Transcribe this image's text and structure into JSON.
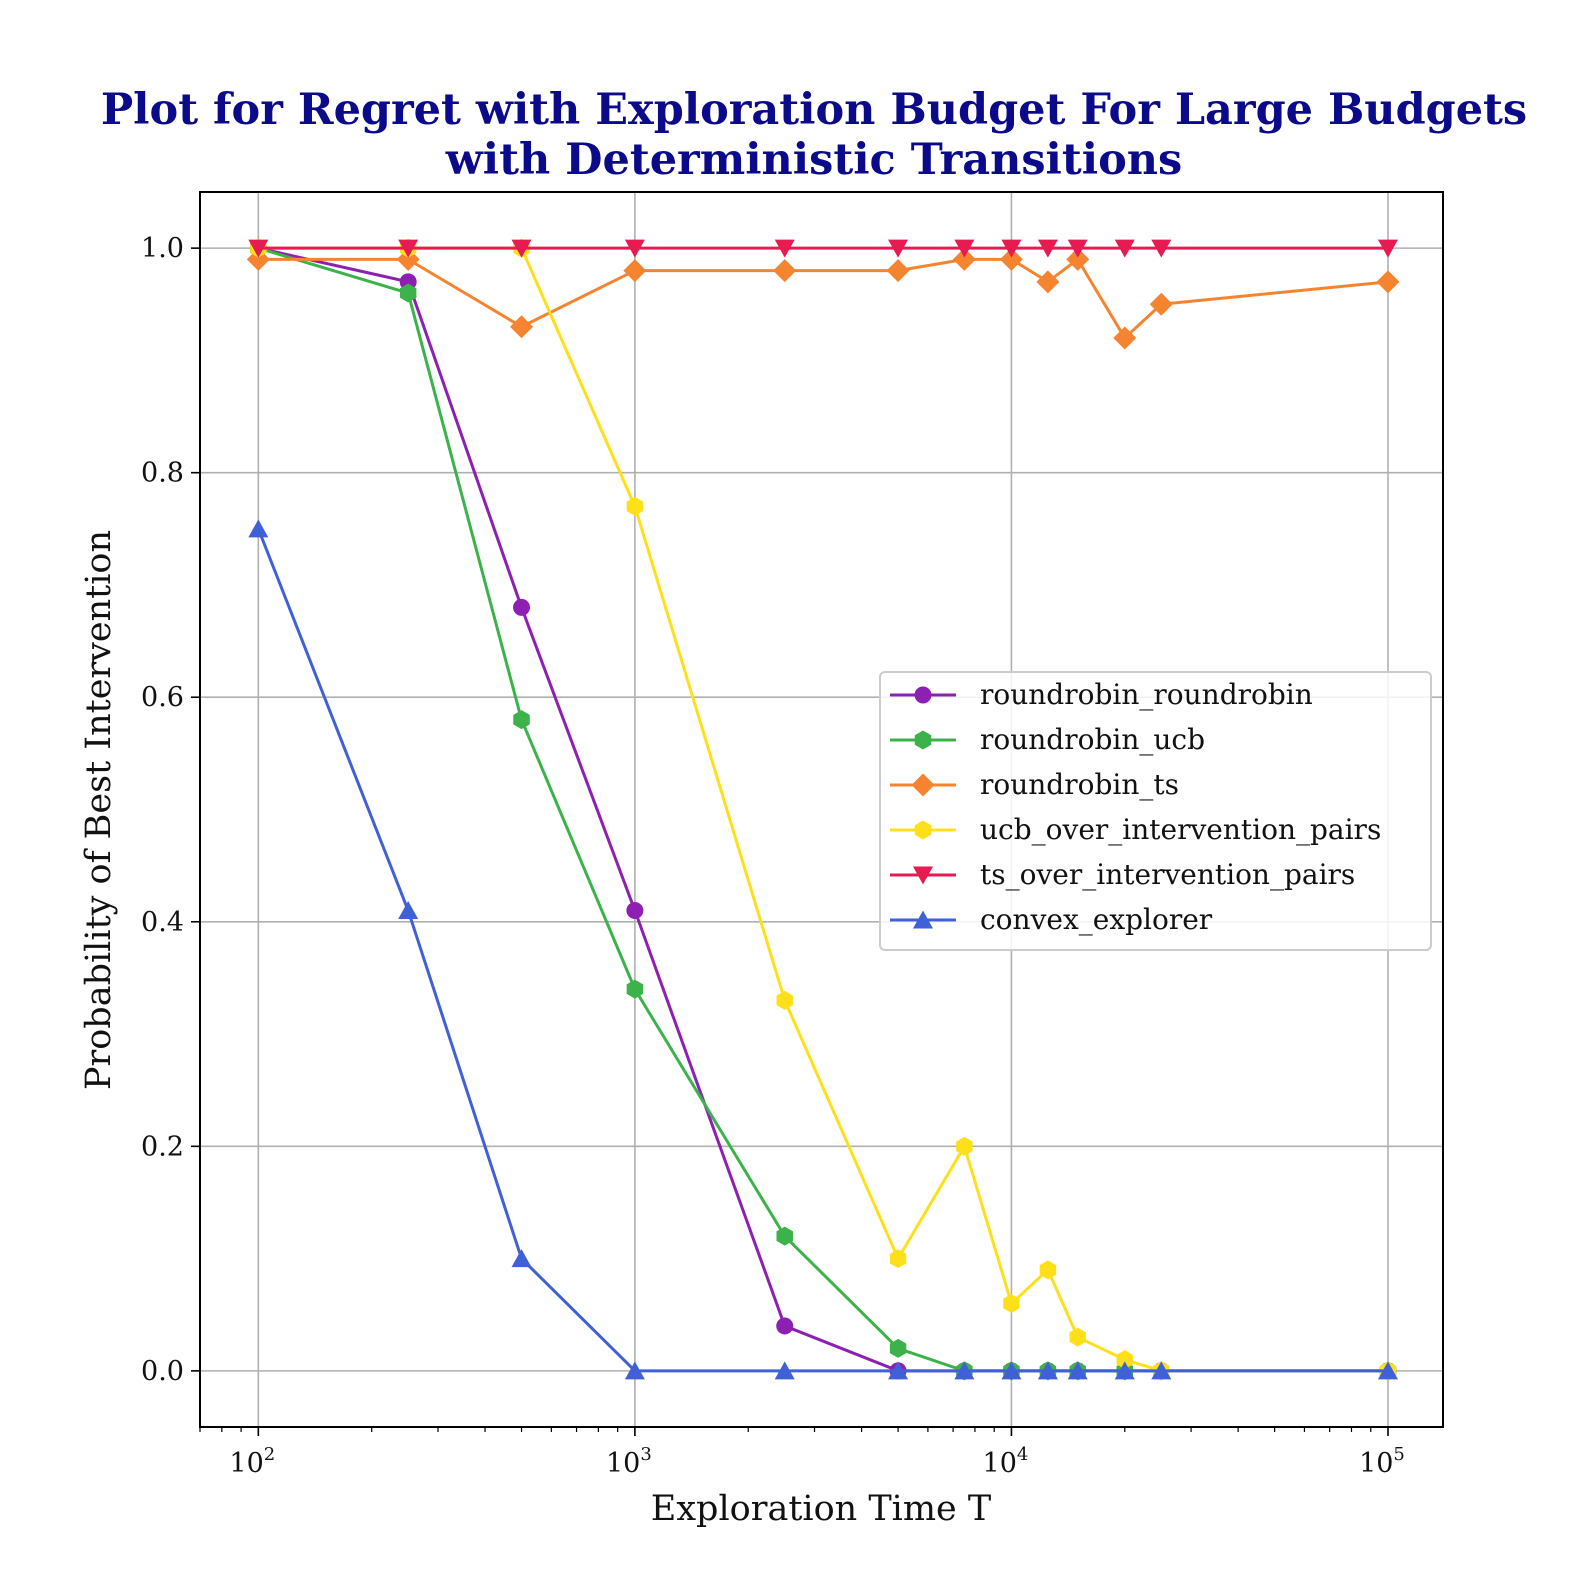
{
  "chart_data": {
    "type": "line",
    "title_line1": "Plot for Regret with Exploration Budget For Large Budgets",
    "title_line2": "with Deterministic Transitions",
    "xlabel": "Exploration Time T",
    "ylabel": "Probability of Best Intervention",
    "xscale": "log",
    "xlim": [
      70,
      140000
    ],
    "ylim": [
      -0.05,
      1.05
    ],
    "grid": true,
    "legend_position": "center-right",
    "x_ticks": [
      {
        "value": 100,
        "base": "10",
        "exp": "2"
      },
      {
        "value": 1000,
        "base": "10",
        "exp": "3"
      },
      {
        "value": 10000,
        "base": "10",
        "exp": "4"
      },
      {
        "value": 100000,
        "base": "10",
        "exp": "5"
      }
    ],
    "y_ticks": [
      {
        "value": 0.0,
        "label": "0.0"
      },
      {
        "value": 0.2,
        "label": "0.2"
      },
      {
        "value": 0.4,
        "label": "0.4"
      },
      {
        "value": 0.6,
        "label": "0.6"
      },
      {
        "value": 0.8,
        "label": "0.8"
      },
      {
        "value": 1.0,
        "label": "1.0"
      }
    ],
    "x": [
      100,
      250,
      500,
      1000,
      2500,
      5000,
      7500,
      10000,
      12500,
      15000,
      20000,
      25000,
      100000
    ],
    "series": [
      {
        "name": "roundrobin_roundrobin",
        "color": "#8e1fb3",
        "marker": "circle",
        "values": [
          1.0,
          0.97,
          0.68,
          0.41,
          0.04,
          0.0,
          0.0,
          0.0,
          0.0,
          0.0,
          0.0,
          0.0,
          0.0
        ]
      },
      {
        "name": "roundrobin_ucb",
        "color": "#3bb34a",
        "marker": "hexagon",
        "values": [
          1.0,
          0.96,
          0.58,
          0.34,
          0.12,
          0.02,
          0.0,
          0.0,
          0.0,
          0.0,
          0.0,
          0.0,
          0.0
        ]
      },
      {
        "name": "roundrobin_ts",
        "color": "#f58430",
        "marker": "diamond",
        "values": [
          0.99,
          0.99,
          0.93,
          0.98,
          0.98,
          0.98,
          0.99,
          0.99,
          0.97,
          0.99,
          0.92,
          0.95,
          0.97
        ]
      },
      {
        "name": "ucb_over_intervention_pairs",
        "color": "#fde01a",
        "marker": "hexagon",
        "values": [
          1.0,
          1.0,
          1.0,
          0.77,
          0.33,
          0.1,
          0.2,
          0.06,
          0.09,
          0.03,
          0.01,
          0.0,
          0.0
        ]
      },
      {
        "name": "ts_over_intervention_pairs",
        "color": "#e51b52",
        "marker": "triangle-down",
        "values": [
          1.0,
          1.0,
          1.0,
          1.0,
          1.0,
          1.0,
          1.0,
          1.0,
          1.0,
          1.0,
          1.0,
          1.0,
          1.0
        ]
      },
      {
        "name": "convex_explorer",
        "color": "#4060d8",
        "marker": "triangle-up",
        "values": [
          0.75,
          0.41,
          0.1,
          0.0,
          0.0,
          0.0,
          0.0,
          0.0,
          0.0,
          0.0,
          0.0,
          0.0,
          0.0
        ]
      }
    ]
  }
}
